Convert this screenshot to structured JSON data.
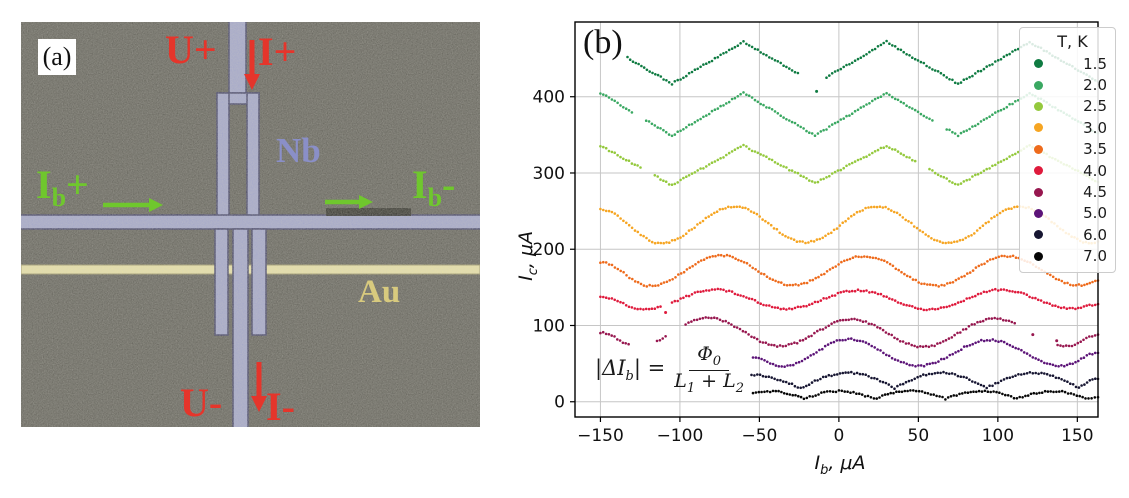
{
  "panel_a": {
    "label": "(a)",
    "u_plus": "U+",
    "i_plus": "I+",
    "u_minus": "U-",
    "i_minus": "I-",
    "ib_symbol": "I",
    "ib_sub": "b",
    "ib_plus_sign": "+",
    "ib_minus_sign": "-",
    "nb_label": "Nb",
    "au_label": "Au",
    "colors": {
      "background": "#54534b",
      "nb_fill": "#9da1cb",
      "nb_edge": "#30305a",
      "au_fill": "#ece4a2",
      "au_edge": "#97905d",
      "label_red": "#e5352b",
      "label_green": "#6fc72d",
      "nb_label_color": "#8a8fc8",
      "au_label_color": "#d8ca7e"
    }
  },
  "panel_b": {
    "label": "(b)",
    "x_axis": {
      "symbol": "I",
      "sub": "b",
      "unit": ", μA"
    },
    "y_axis": {
      "symbol": "I",
      "sub": "c",
      "unit": ", μA"
    },
    "annotation": {
      "lhs": "|ΔI",
      "lhs_sub": "b",
      "lhs_close": "| =",
      "num": "Φ",
      "num_sub": "0",
      "den_l1": "L",
      "den_l1_sub": "1",
      "den_plus": " + ",
      "den_l2": "L",
      "den_l2_sub": "2"
    }
  },
  "chart_data": {
    "type": "scatter",
    "title": "",
    "xlabel": "I_b, μA",
    "ylabel": "I_c, μA",
    "xlim": [
      -166,
      163
    ],
    "ylim": [
      -20,
      498
    ],
    "grid": true,
    "legend_position": "upper right",
    "legend_title": "T, K",
    "annotation": "|ΔI_b| = Φ_0 / (L_1 + L_2)",
    "point_step_uA": 1.8,
    "x_ticks": [
      {
        "v": -150,
        "label": "−150"
      },
      {
        "v": -100,
        "label": "−100"
      },
      {
        "v": -50,
        "label": "−50"
      },
      {
        "v": 0,
        "label": "0"
      },
      {
        "v": 50,
        "label": "50"
      },
      {
        "v": 100,
        "label": "100"
      },
      {
        "v": 150,
        "label": "150"
      }
    ],
    "y_ticks": [
      {
        "v": 0,
        "label": "0"
      },
      {
        "v": 100,
        "label": "100"
      },
      {
        "v": 200,
        "label": "200"
      },
      {
        "v": 300,
        "label": "300"
      },
      {
        "v": 400,
        "label": "400"
      }
    ],
    "series": [
      {
        "name": "1.5",
        "temperature_K": 1.5,
        "color": "#0f7b42",
        "shape": "linear",
        "vertices": [
          [
            -133,
            451
          ],
          [
            -105,
            417
          ],
          [
            -60,
            472
          ],
          [
            -15,
            417
          ],
          [
            30,
            472
          ],
          [
            75,
            417
          ],
          [
            120,
            472
          ],
          [
            163,
            420
          ]
        ],
        "gaps": [
          [
            -24,
            -8
          ]
        ],
        "outliers": [
          [
            -14,
            407
          ]
        ]
      },
      {
        "name": "2.0",
        "temperature_K": 2.0,
        "color": "#3aa862",
        "shape": "linear",
        "vertices": [
          [
            -150,
            405
          ],
          [
            -105,
            349
          ],
          [
            -60,
            405
          ],
          [
            -15,
            349
          ],
          [
            30,
            405
          ],
          [
            75,
            349
          ],
          [
            120,
            405
          ],
          [
            163,
            352
          ]
        ],
        "gaps": [
          [
            -129,
            -122
          ],
          [
            60,
            67
          ]
        ],
        "outliers": []
      },
      {
        "name": "2.5",
        "temperature_K": 2.5,
        "color": "#94c93d",
        "shape": "linear",
        "vertices": [
          [
            -150,
            336
          ],
          [
            -105,
            284
          ],
          [
            -60,
            336
          ],
          [
            -15,
            287
          ],
          [
            30,
            336
          ],
          [
            75,
            284
          ],
          [
            120,
            336
          ],
          [
            163,
            288
          ]
        ],
        "gaps": [
          [
            -124,
            -117
          ],
          [
            49,
            56
          ]
        ],
        "outliers": []
      },
      {
        "name": "3.0",
        "temperature_K": 3.0,
        "color": "#f6a522",
        "shape": "smooth",
        "vertices": [
          [
            -150,
            252
          ],
          [
            -112,
            208
          ],
          [
            -66,
            256
          ],
          [
            -21,
            209
          ],
          [
            24,
            256
          ],
          [
            69,
            208
          ],
          [
            114,
            256
          ],
          [
            159,
            208
          ],
          [
            163,
            210
          ]
        ],
        "gaps": [],
        "outliers": []
      },
      {
        "name": "3.5",
        "temperature_K": 3.5,
        "color": "#ee6b1c",
        "shape": "smooth",
        "vertices": [
          [
            -150,
            183
          ],
          [
            -119,
            152
          ],
          [
            -74,
            192
          ],
          [
            -29,
            153
          ],
          [
            16,
            191
          ],
          [
            61,
            152
          ],
          [
            106,
            191
          ],
          [
            151,
            153
          ],
          [
            163,
            159
          ]
        ],
        "gaps": [],
        "outliers": []
      },
      {
        "name": "4.0",
        "temperature_K": 4.0,
        "color": "#df1a3c",
        "shape": "smooth",
        "vertices": [
          [
            -150,
            138
          ],
          [
            -123,
            121
          ],
          [
            -78,
            147
          ],
          [
            -33,
            122
          ],
          [
            12,
            146
          ],
          [
            57,
            121
          ],
          [
            102,
            147
          ],
          [
            147,
            122
          ],
          [
            163,
            128
          ]
        ],
        "gaps": [
          [
            -112,
            -106
          ]
        ],
        "outliers": [
          [
            -109,
            117
          ]
        ]
      },
      {
        "name": "4.5",
        "temperature_K": 4.5,
        "color": "#97174f",
        "shape": "smooth",
        "vertices": [
          [
            -150,
            91
          ],
          [
            -127,
            72
          ],
          [
            -82,
            110
          ],
          [
            -37,
            73
          ],
          [
            8,
            108
          ],
          [
            53,
            72
          ],
          [
            98,
            109
          ],
          [
            143,
            73
          ],
          [
            163,
            88
          ]
        ],
        "gaps": [
          [
            -132,
            -116
          ],
          [
            -108,
            -98
          ],
          [
            112,
            136
          ]
        ],
        "outliers": [
          [
            122,
            88
          ],
          [
            137,
            80
          ]
        ]
      },
      {
        "name": "5.0",
        "temperature_K": 5.0,
        "color": "#5c1478",
        "shape": "smooth",
        "vertices": [
          [
            -54,
            58
          ],
          [
            -36,
            46
          ],
          [
            6,
            82
          ],
          [
            50,
            47
          ],
          [
            95,
            81
          ],
          [
            140,
            47
          ],
          [
            163,
            64
          ]
        ],
        "gaps": [],
        "outliers": []
      },
      {
        "name": "6.0",
        "temperature_K": 6.0,
        "color": "#171632",
        "shape": "scallop",
        "vertices": [
          [
            -55,
            35
          ],
          [
            -24,
            18
          ],
          [
            6,
            38
          ],
          [
            35,
            18
          ],
          [
            64,
            38
          ],
          [
            93,
            18
          ],
          [
            122,
            38
          ],
          [
            151,
            18
          ],
          [
            163,
            30
          ]
        ],
        "gaps": [],
        "outliers": []
      },
      {
        "name": "7.0",
        "temperature_K": 7.0,
        "color": "#060606",
        "shape": "scallop",
        "vertices": [
          [
            -54,
            12
          ],
          [
            -45,
            14
          ],
          [
            -22,
            4
          ],
          [
            0,
            14
          ],
          [
            22,
            4
          ],
          [
            45,
            14
          ],
          [
            67,
            4
          ],
          [
            90,
            14
          ],
          [
            112,
            4
          ],
          [
            135,
            14
          ],
          [
            157,
            4
          ],
          [
            163,
            6
          ]
        ],
        "gaps": [],
        "outliers": []
      }
    ]
  }
}
